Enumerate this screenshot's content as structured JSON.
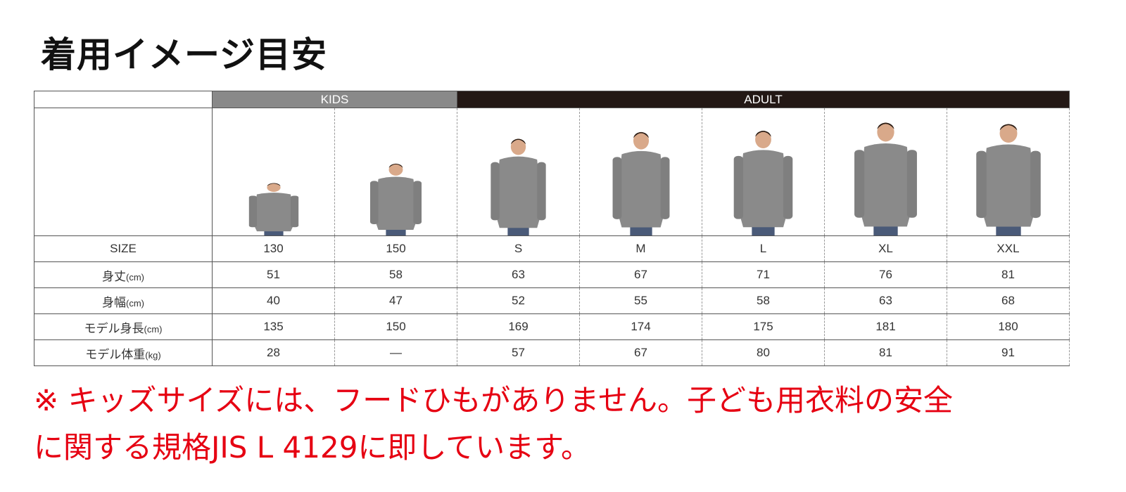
{
  "title": "着用イメージ目安",
  "groups": {
    "kids": "KIDS",
    "adult": "ADULT"
  },
  "colors": {
    "kids": "#898989",
    "adult": "#231815",
    "note": "#e60012",
    "hoodie": "#8a8a8a"
  },
  "rows": [
    {
      "label": "SIZE",
      "unit": "",
      "values": [
        "130",
        "150",
        "S",
        "M",
        "L",
        "XL",
        "XXL"
      ]
    },
    {
      "label": "身丈",
      "unit": "(cm)",
      "values": [
        "51",
        "58",
        "63",
        "67",
        "71",
        "76",
        "81"
      ]
    },
    {
      "label": "身幅",
      "unit": "(cm)",
      "values": [
        "40",
        "47",
        "52",
        "55",
        "58",
        "63",
        "68"
      ]
    },
    {
      "label": "モデル身長",
      "unit": "(cm)",
      "values": [
        "135",
        "150",
        "169",
        "174",
        "175",
        "181",
        "180"
      ]
    },
    {
      "label": "モデル体重",
      "unit": "(kg)",
      "values": [
        "28",
        "—",
        "57",
        "67",
        "80",
        "81",
        "91"
      ]
    }
  ],
  "note": {
    "line1": "※ キッズサイズには、フードひもがありません。子ども用衣料の安全",
    "line2": "に関する規格JIS L 4129に即しています。"
  }
}
